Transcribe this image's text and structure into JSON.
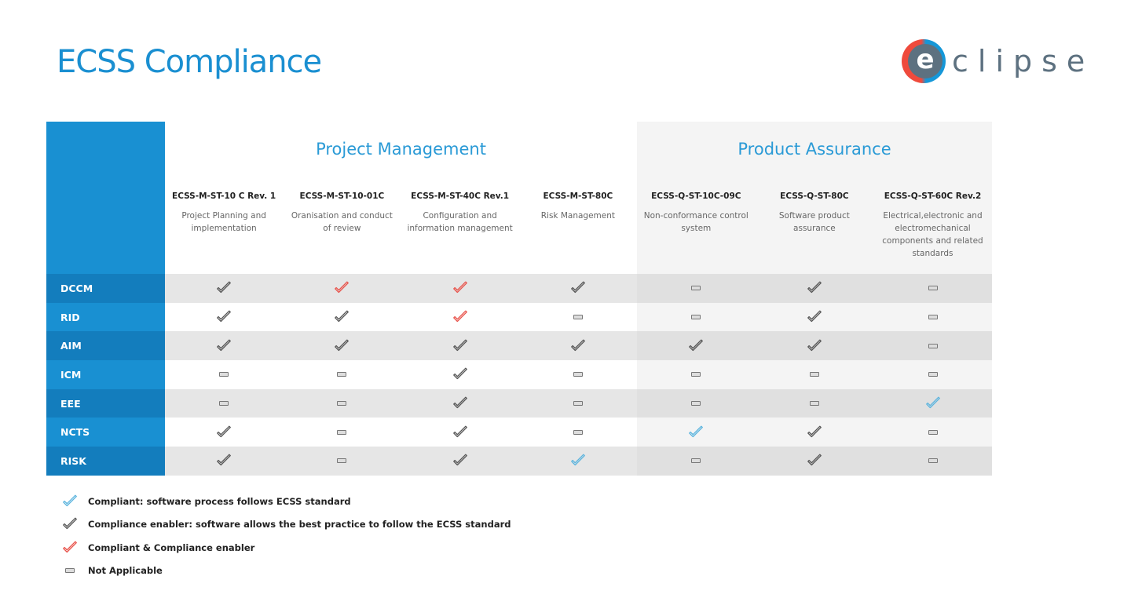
{
  "page": {
    "title": "ECSS Compliance",
    "logo": {
      "letter": "e",
      "text": "clipse",
      "colors": {
        "red": "#ef4a3c",
        "blue": "#1597d8",
        "gray": "#5d7180"
      }
    }
  },
  "colors": {
    "accent": "#1990d2",
    "compliant": "#5bb4de",
    "enabler": "#555555",
    "both": "#e8524a",
    "na": "#777777"
  },
  "groups": [
    {
      "title": "Project Management"
    },
    {
      "title": "Product Assurance"
    }
  ],
  "standards": [
    {
      "code": "ECSS-M-ST-10 C Rev. 1",
      "desc": "Project Planning and implementation",
      "group": 0
    },
    {
      "code": "ECSS-M-ST-10-01C",
      "desc": "Oranisation and conduct of review",
      "group": 0
    },
    {
      "code": "ECSS-M-ST-40C Rev.1",
      "desc": "Configuration and information management",
      "group": 0
    },
    {
      "code": "ECSS-M-ST-80C",
      "desc": "Risk Management",
      "group": 0
    },
    {
      "code": "ECSS-Q-ST-10C-09C",
      "desc": "Non-conformance control system",
      "group": 1
    },
    {
      "code": "ECSS-Q-ST-80C",
      "desc": "Software product assurance",
      "group": 1
    },
    {
      "code": "ECSS-Q-ST-60C Rev.2",
      "desc": "Electrical,electronic and electromechanical components and related standards",
      "group": 1
    }
  ],
  "rows": [
    {
      "label": "DCCM",
      "cells": [
        "enabler",
        "both",
        "both",
        "enabler",
        "na",
        "enabler",
        "na"
      ]
    },
    {
      "label": "RID",
      "cells": [
        "enabler",
        "enabler",
        "both",
        "na",
        "na",
        "enabler",
        "na"
      ]
    },
    {
      "label": "AIM",
      "cells": [
        "enabler",
        "enabler",
        "enabler",
        "enabler",
        "enabler",
        "enabler",
        "na"
      ]
    },
    {
      "label": "ICM",
      "cells": [
        "na",
        "na",
        "enabler",
        "na",
        "na",
        "na",
        "na"
      ]
    },
    {
      "label": "EEE",
      "cells": [
        "na",
        "na",
        "enabler",
        "na",
        "na",
        "na",
        "compliant"
      ]
    },
    {
      "label": "NCTS",
      "cells": [
        "enabler",
        "na",
        "enabler",
        "na",
        "compliant",
        "enabler",
        "na"
      ]
    },
    {
      "label": "RISK",
      "cells": [
        "enabler",
        "na",
        "enabler",
        "compliant",
        "na",
        "enabler",
        "na"
      ]
    }
  ],
  "legend": [
    {
      "type": "compliant",
      "icon": "check-blue-icon",
      "label": "Compliant: software process follows ECSS standard"
    },
    {
      "type": "enabler",
      "icon": "check-gray-icon",
      "label": "Compliance enabler: software allows the best practice to follow the ECSS standard"
    },
    {
      "type": "both",
      "icon": "check-red-icon",
      "label": "Compliant & Compliance enabler"
    },
    {
      "type": "na",
      "icon": "dash-icon",
      "label": "Not Applicable"
    }
  ]
}
